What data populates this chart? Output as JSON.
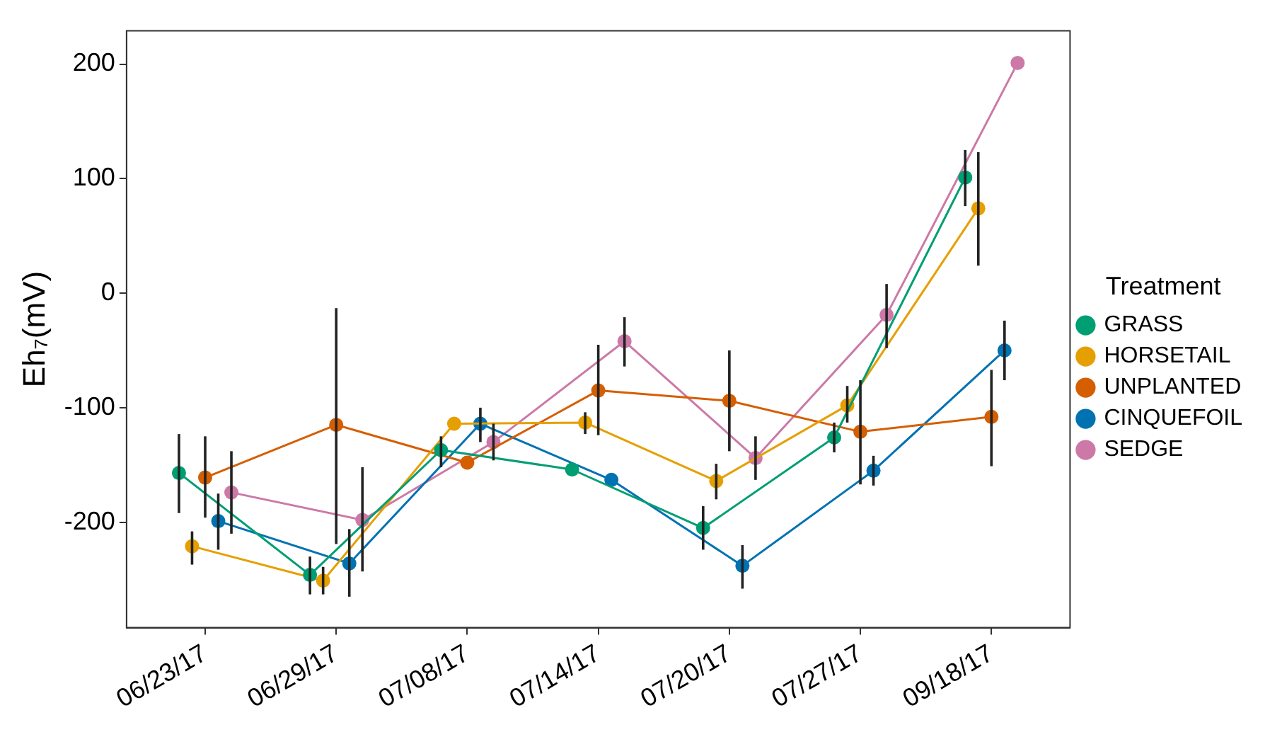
{
  "chart_data": {
    "type": "line",
    "ylabel": "Eh₇(mV)",
    "legend_title": "Treatment",
    "legend": "right",
    "marker": "circle",
    "line_style": "solid",
    "grid": false,
    "categories": [
      "06/23/17",
      "06/29/17",
      "07/08/17",
      "07/14/17",
      "07/20/17",
      "07/27/17",
      "09/18/17"
    ],
    "ylim": [
      -292,
      229
    ],
    "yticks": [
      -200,
      -100,
      0,
      100,
      200
    ],
    "series": [
      {
        "name": "GRASS",
        "color": "#009e73",
        "values": [
          -157,
          -246,
          -137,
          -154,
          -205,
          -126,
          101
        ],
        "errors": [
          [
            -192,
            -123
          ],
          [
            -263,
            -230
          ],
          [
            -152,
            -125
          ],
          null,
          [
            -224,
            -186
          ],
          [
            -139,
            -113
          ],
          [
            76,
            125
          ]
        ]
      },
      {
        "name": "HORSETAIL",
        "color": "#e69f00",
        "values": [
          -221,
          -251,
          -114,
          -113,
          -164,
          -98,
          74
        ],
        "errors": [
          [
            -237,
            -208
          ],
          [
            -263,
            -239
          ],
          null,
          [
            -123,
            -104
          ],
          [
            -180,
            -149
          ],
          [
            -113,
            -81
          ],
          [
            24,
            123
          ]
        ]
      },
      {
        "name": "UNPLANTED",
        "color": "#d55e00",
        "values": [
          -161,
          -115,
          -148,
          -85,
          -94,
          -121,
          -108
        ],
        "errors": [
          [
            -196,
            -125
          ],
          [
            -219,
            -13
          ],
          null,
          [
            -124,
            -45
          ],
          [
            -138,
            -50
          ],
          [
            -167,
            -76
          ],
          [
            -151,
            -67
          ]
        ]
      },
      {
        "name": "CINQUEFOIL",
        "color": "#0072b2",
        "values": [
          -199,
          -236,
          -114,
          -163,
          -238,
          -155,
          -50
        ],
        "errors": [
          [
            -224,
            -175
          ],
          [
            -265,
            -206
          ],
          [
            -130,
            -100
          ],
          null,
          [
            -258,
            -220
          ],
          [
            -168,
            -142
          ],
          [
            -76,
            -24
          ]
        ]
      },
      {
        "name": "SEDGE",
        "color": "#cc79a7",
        "values": [
          -174,
          -198,
          -130,
          -42,
          -144,
          -19,
          201
        ],
        "errors": [
          [
            -210,
            -138
          ],
          [
            -243,
            -152
          ],
          [
            -146,
            -114
          ],
          [
            -64,
            -21
          ],
          [
            -163,
            -125
          ],
          [
            -48,
            8
          ],
          null
        ]
      }
    ]
  }
}
